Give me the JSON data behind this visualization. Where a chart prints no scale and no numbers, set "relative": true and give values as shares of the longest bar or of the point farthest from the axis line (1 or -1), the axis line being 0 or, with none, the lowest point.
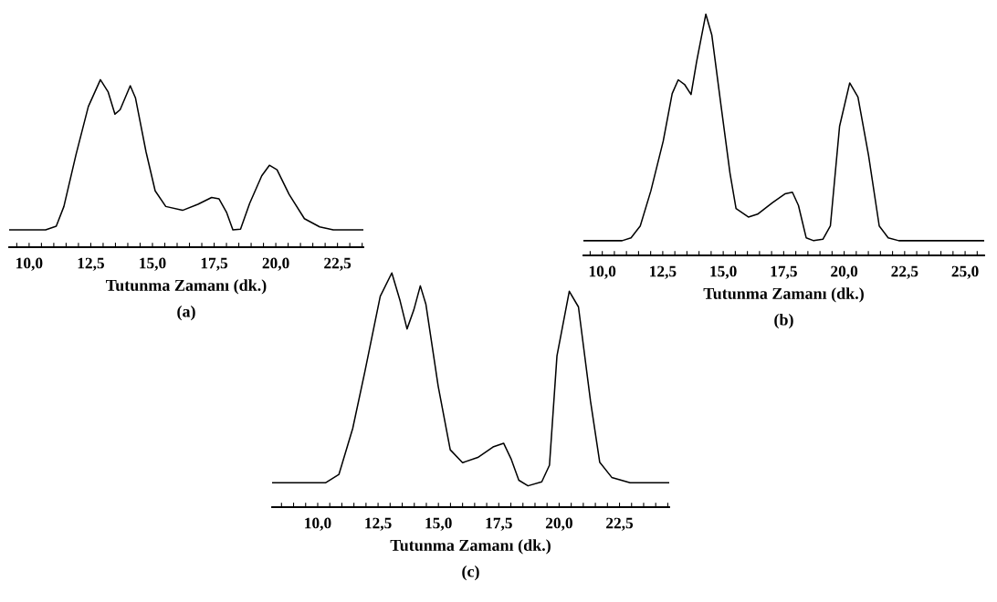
{
  "chart_data": [
    {
      "type": "line",
      "relative": true,
      "xlabel": "Tutunma Zamanı (dk.)",
      "annotations": [
        "(a)"
      ],
      "xlim": [
        9.19,
        23.55
      ],
      "tick_labels": "x",
      "grid": false,
      "legend": false,
      "xticks": [
        {
          "value": 9.5,
          "label": null
        },
        {
          "value": 10,
          "label": "10,0"
        },
        {
          "value": 10.5,
          "label": null
        },
        {
          "value": 11,
          "label": null
        },
        {
          "value": 11.5,
          "label": null
        },
        {
          "value": 12,
          "label": null
        },
        {
          "value": 12.5,
          "label": "12,5"
        },
        {
          "value": 13,
          "label": null
        },
        {
          "value": 13.5,
          "label": null
        },
        {
          "value": 14,
          "label": null
        },
        {
          "value": 14.5,
          "label": null
        },
        {
          "value": 15,
          "label": "15,0"
        },
        {
          "value": 15.5,
          "label": null
        },
        {
          "value": 16,
          "label": null
        },
        {
          "value": 16.5,
          "label": null
        },
        {
          "value": 17,
          "label": null
        },
        {
          "value": 17.5,
          "label": "17,5"
        },
        {
          "value": 18,
          "label": null
        },
        {
          "value": 18.5,
          "label": null
        },
        {
          "value": 19,
          "label": null
        },
        {
          "value": 19.5,
          "label": null
        },
        {
          "value": 20,
          "label": "20,0"
        },
        {
          "value": 20.5,
          "label": null
        },
        {
          "value": 21,
          "label": null
        },
        {
          "value": 21.5,
          "label": null
        },
        {
          "value": 22,
          "label": null
        },
        {
          "value": 22.5,
          "label": "22,5"
        },
        {
          "value": 23,
          "label": null
        },
        {
          "value": 23.5,
          "label": null
        }
      ],
      "series": [
        {
          "color": "#000000",
          "x": [
            9.19,
            10.67,
            11.1,
            11.41,
            11.9,
            12.4,
            12.89,
            13.2,
            13.48,
            13.69,
            14.1,
            14.31,
            14.74,
            15.11,
            15.54,
            16.22,
            16.84,
            17.4,
            17.7,
            18.01,
            18.26,
            18.57,
            18.94,
            19.43,
            19.74,
            20.05,
            20.54,
            21.16,
            21.78,
            22.33,
            23.55
          ],
          "values": [
            0.103,
            0.103,
            0.125,
            0.243,
            0.552,
            0.839,
            1.0,
            0.928,
            0.794,
            0.821,
            0.964,
            0.892,
            0.569,
            0.336,
            0.243,
            0.22,
            0.256,
            0.297,
            0.288,
            0.206,
            0.103,
            0.107,
            0.261,
            0.426,
            0.489,
            0.462,
            0.315,
            0.17,
            0.121,
            0.103,
            0.103
          ]
        }
      ]
    },
    {
      "type": "line",
      "relative": true,
      "xlabel": "Tutunma Zamanı (dk.)",
      "annotations": [
        "(b)"
      ],
      "xlim": [
        9.22,
        25.79
      ],
      "tick_labels": "x",
      "grid": false,
      "legend": false,
      "xticks": [
        {
          "value": 9.5,
          "label": null
        },
        {
          "value": 10,
          "label": "10,0"
        },
        {
          "value": 10.5,
          "label": null
        },
        {
          "value": 11,
          "label": null
        },
        {
          "value": 11.5,
          "label": null
        },
        {
          "value": 12,
          "label": null
        },
        {
          "value": 12.5,
          "label": "12,5"
        },
        {
          "value": 13,
          "label": null
        },
        {
          "value": 13.5,
          "label": null
        },
        {
          "value": 14,
          "label": null
        },
        {
          "value": 14.5,
          "label": null
        },
        {
          "value": 15,
          "label": "15,0"
        },
        {
          "value": 15.5,
          "label": null
        },
        {
          "value": 16,
          "label": null
        },
        {
          "value": 16.5,
          "label": null
        },
        {
          "value": 17,
          "label": null
        },
        {
          "value": 17.5,
          "label": "17,5"
        },
        {
          "value": 18,
          "label": null
        },
        {
          "value": 18.5,
          "label": null
        },
        {
          "value": 19,
          "label": null
        },
        {
          "value": 19.5,
          "label": null
        },
        {
          "value": 20,
          "label": "20,0"
        },
        {
          "value": 20.5,
          "label": null
        },
        {
          "value": 21,
          "label": null
        },
        {
          "value": 21.5,
          "label": null
        },
        {
          "value": 22,
          "label": null
        },
        {
          "value": 22.5,
          "label": "22,5"
        },
        {
          "value": 23,
          "label": null
        },
        {
          "value": 23.5,
          "label": null
        },
        {
          "value": 24,
          "label": null
        },
        {
          "value": 24.5,
          "label": null
        },
        {
          "value": 25,
          "label": "25,0"
        },
        {
          "value": 25.5,
          "label": null
        }
      ],
      "series": [
        {
          "color": "#000000",
          "x": [
            9.22,
            10.82,
            11.19,
            11.57,
            12.01,
            12.52,
            12.89,
            13.14,
            13.4,
            13.67,
            13.9,
            14.28,
            14.53,
            14.91,
            15.28,
            15.53,
            16.04,
            16.42,
            17.04,
            17.55,
            17.86,
            18.11,
            18.43,
            18.74,
            19.12,
            19.43,
            19.81,
            20.23,
            20.57,
            21.01,
            21.45,
            21.82,
            22.26,
            25.79
          ],
          "values": [
            0.061,
            0.061,
            0.073,
            0.122,
            0.268,
            0.474,
            0.671,
            0.728,
            0.709,
            0.667,
            0.803,
            1.0,
            0.913,
            0.621,
            0.341,
            0.194,
            0.159,
            0.171,
            0.219,
            0.255,
            0.262,
            0.207,
            0.073,
            0.061,
            0.067,
            0.122,
            0.535,
            0.715,
            0.657,
            0.414,
            0.122,
            0.073,
            0.061,
            0.061
          ]
        }
      ]
    },
    {
      "type": "line",
      "relative": true,
      "xlabel": "Tutunma Zamanı (dk.)",
      "annotations": [
        "(c)"
      ],
      "xlim": [
        8.11,
        24.56
      ],
      "tick_labels": "x",
      "grid": false,
      "legend": false,
      "xticks": [
        {
          "value": 8.5,
          "label": null
        },
        {
          "value": 9,
          "label": null
        },
        {
          "value": 9.5,
          "label": null
        },
        {
          "value": 10,
          "label": "10,0"
        },
        {
          "value": 10.5,
          "label": null
        },
        {
          "value": 11,
          "label": null
        },
        {
          "value": 11.5,
          "label": null
        },
        {
          "value": 12,
          "label": null
        },
        {
          "value": 12.5,
          "label": "12,5"
        },
        {
          "value": 13,
          "label": null
        },
        {
          "value": 13.5,
          "label": null
        },
        {
          "value": 14,
          "label": null
        },
        {
          "value": 14.5,
          "label": null
        },
        {
          "value": 15,
          "label": "15,0"
        },
        {
          "value": 15.5,
          "label": null
        },
        {
          "value": 16,
          "label": null
        },
        {
          "value": 16.5,
          "label": null
        },
        {
          "value": 17,
          "label": null
        },
        {
          "value": 17.5,
          "label": "17,5"
        },
        {
          "value": 18,
          "label": null
        },
        {
          "value": 18.5,
          "label": null
        },
        {
          "value": 19,
          "label": null
        },
        {
          "value": 19.5,
          "label": null
        },
        {
          "value": 20,
          "label": "20,0"
        },
        {
          "value": 20.5,
          "label": null
        },
        {
          "value": 21,
          "label": null
        },
        {
          "value": 21.5,
          "label": null
        },
        {
          "value": 22,
          "label": null
        },
        {
          "value": 22.5,
          "label": "22,5"
        },
        {
          "value": 23,
          "label": null
        },
        {
          "value": 23.5,
          "label": null
        },
        {
          "value": 24,
          "label": null
        },
        {
          "value": 24.5,
          "label": null
        }
      ],
      "series": [
        {
          "color": "#000000",
          "x": [
            8.11,
            10.32,
            10.88,
            11.45,
            11.96,
            12.59,
            13.07,
            13.41,
            13.7,
            13.98,
            14.25,
            14.48,
            14.99,
            15.49,
            16.0,
            16.63,
            17.26,
            17.7,
            18.01,
            18.33,
            18.71,
            19.28,
            19.6,
            19.91,
            20.42,
            20.8,
            21.3,
            21.68,
            22.18,
            22.94,
            24.56
          ],
          "values": [
            0.104,
            0.104,
            0.14,
            0.336,
            0.582,
            0.9,
            1.0,
            0.882,
            0.761,
            0.842,
            0.945,
            0.867,
            0.517,
            0.245,
            0.19,
            0.212,
            0.257,
            0.273,
            0.206,
            0.115,
            0.091,
            0.108,
            0.179,
            0.646,
            0.922,
            0.855,
            0.452,
            0.192,
            0.127,
            0.104,
            0.104
          ]
        }
      ]
    }
  ]
}
